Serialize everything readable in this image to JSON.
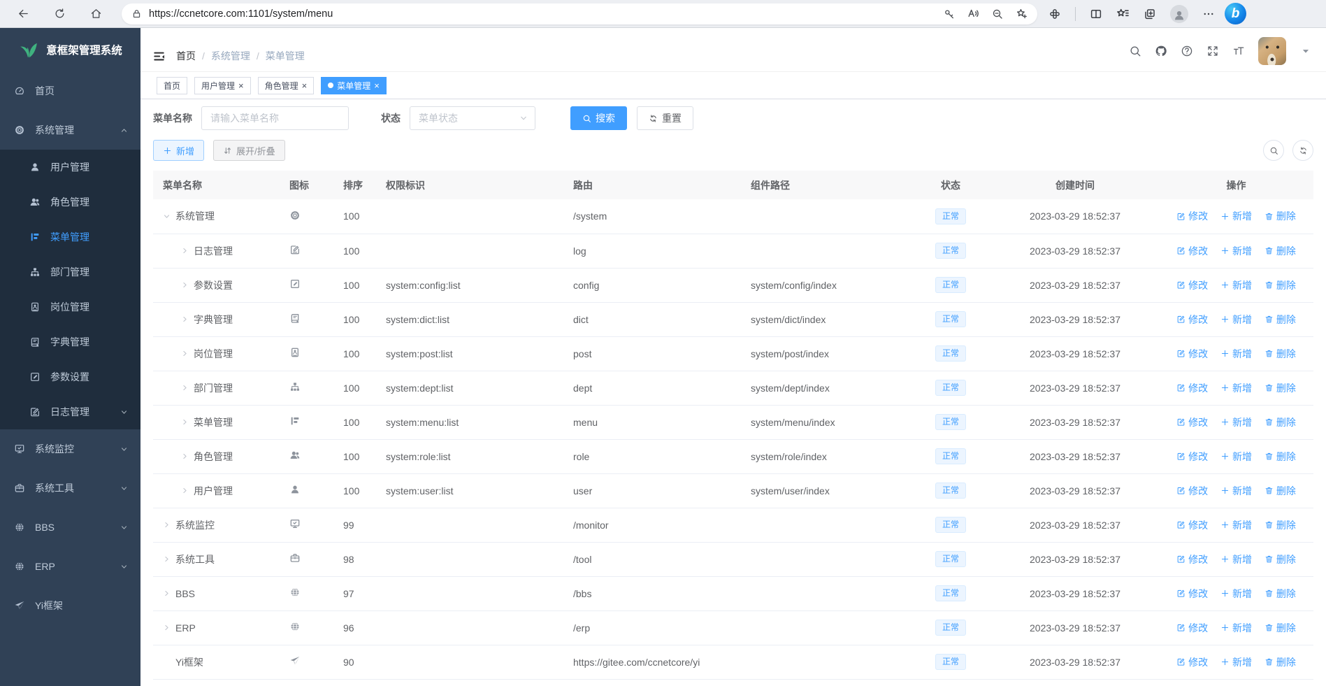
{
  "browser": {
    "url": "https://ccnetcore.com:1101/system/menu"
  },
  "sidebar": {
    "title": "意框架管理系统",
    "items": [
      {
        "label": "首页",
        "icon": "dashboard"
      },
      {
        "label": "系统管理",
        "icon": "gear",
        "expanded": true,
        "children": [
          {
            "label": "用户管理",
            "icon": "user"
          },
          {
            "label": "角色管理",
            "icon": "peoples"
          },
          {
            "label": "菜单管理",
            "icon": "tree-table",
            "active": true
          },
          {
            "label": "部门管理",
            "icon": "tree"
          },
          {
            "label": "岗位管理",
            "icon": "post"
          },
          {
            "label": "字典管理",
            "icon": "dict"
          },
          {
            "label": "参数设置",
            "icon": "edit"
          },
          {
            "label": "日志管理",
            "icon": "log",
            "has_children": true
          }
        ]
      },
      {
        "label": "系统监控",
        "icon": "monitor",
        "has_children": true
      },
      {
        "label": "系统工具",
        "icon": "tool",
        "has_children": true
      },
      {
        "label": "BBS",
        "icon": "globe",
        "has_children": true
      },
      {
        "label": "ERP",
        "icon": "globe",
        "has_children": true
      },
      {
        "label": "Yi框架",
        "icon": "guide"
      }
    ]
  },
  "header": {
    "breadcrumb": [
      "首页",
      "系统管理",
      "菜单管理"
    ]
  },
  "tabs": [
    {
      "label": "首页",
      "closable": false,
      "active": false
    },
    {
      "label": "用户管理",
      "closable": true,
      "active": false
    },
    {
      "label": "角色管理",
      "closable": true,
      "active": false
    },
    {
      "label": "菜单管理",
      "closable": true,
      "active": true
    }
  ],
  "filters": {
    "name_label": "菜单名称",
    "name_placeholder": "请输入菜单名称",
    "name_value": "",
    "status_label": "状态",
    "status_placeholder": "菜单状态",
    "search_button": "搜索",
    "reset_button": "重置"
  },
  "toolbar": {
    "add_button": "新增",
    "toggle_button": "展开/折叠"
  },
  "table": {
    "columns": [
      "菜单名称",
      "图标",
      "排序",
      "权限标识",
      "路由",
      "组件路径",
      "状态",
      "创建时间",
      "操作"
    ],
    "row_actions": {
      "edit": "修改",
      "add": "新增",
      "delete": "删除"
    },
    "rows": [
      {
        "name": "系统管理",
        "icon": "gear",
        "level": "0",
        "expand": "open",
        "order": "100",
        "perms": "",
        "route": "/system",
        "component": "",
        "status": "正常",
        "created": "2023-03-29 18:52:37"
      },
      {
        "name": "日志管理",
        "icon": "log",
        "level": "1",
        "expand": "closed",
        "order": "100",
        "perms": "",
        "route": "log",
        "component": "",
        "status": "正常",
        "created": "2023-03-29 18:52:37"
      },
      {
        "name": "参数设置",
        "icon": "edit",
        "level": "1",
        "expand": "closed",
        "order": "100",
        "perms": "system:config:list",
        "route": "config",
        "component": "system/config/index",
        "status": "正常",
        "created": "2023-03-29 18:52:37"
      },
      {
        "name": "字典管理",
        "icon": "dict",
        "level": "1",
        "expand": "closed",
        "order": "100",
        "perms": "system:dict:list",
        "route": "dict",
        "component": "system/dict/index",
        "status": "正常",
        "created": "2023-03-29 18:52:37"
      },
      {
        "name": "岗位管理",
        "icon": "post",
        "level": "1",
        "expand": "closed",
        "order": "100",
        "perms": "system:post:list",
        "route": "post",
        "component": "system/post/index",
        "status": "正常",
        "created": "2023-03-29 18:52:37"
      },
      {
        "name": "部门管理",
        "icon": "tree",
        "level": "1",
        "expand": "closed",
        "order": "100",
        "perms": "system:dept:list",
        "route": "dept",
        "component": "system/dept/index",
        "status": "正常",
        "created": "2023-03-29 18:52:37"
      },
      {
        "name": "菜单管理",
        "icon": "tree-table",
        "level": "1",
        "expand": "closed",
        "order": "100",
        "perms": "system:menu:list",
        "route": "menu",
        "component": "system/menu/index",
        "status": "正常",
        "created": "2023-03-29 18:52:37"
      },
      {
        "name": "角色管理",
        "icon": "peoples",
        "level": "1",
        "expand": "closed",
        "order": "100",
        "perms": "system:role:list",
        "route": "role",
        "component": "system/role/index",
        "status": "正常",
        "created": "2023-03-29 18:52:37"
      },
      {
        "name": "用户管理",
        "icon": "user",
        "level": "1",
        "expand": "closed",
        "order": "100",
        "perms": "system:user:list",
        "route": "user",
        "component": "system/user/index",
        "status": "正常",
        "created": "2023-03-29 18:52:37"
      },
      {
        "name": "系统监控",
        "icon": "monitor",
        "level": "0",
        "expand": "closed",
        "order": "99",
        "perms": "",
        "route": "/monitor",
        "component": "",
        "status": "正常",
        "created": "2023-03-29 18:52:37"
      },
      {
        "name": "系统工具",
        "icon": "tool",
        "level": "0",
        "expand": "closed",
        "order": "98",
        "perms": "",
        "route": "/tool",
        "component": "",
        "status": "正常",
        "created": "2023-03-29 18:52:37"
      },
      {
        "name": "BBS",
        "icon": "globe",
        "level": "0",
        "expand": "closed",
        "order": "97",
        "perms": "",
        "route": "/bbs",
        "component": "",
        "status": "正常",
        "created": "2023-03-29 18:52:37"
      },
      {
        "name": "ERP",
        "icon": "globe",
        "level": "0",
        "expand": "closed",
        "order": "96",
        "perms": "",
        "route": "/erp",
        "component": "",
        "status": "正常",
        "created": "2023-03-29 18:52:37"
      },
      {
        "name": "Yi框架",
        "icon": "guide",
        "level": "0",
        "expand": "leaf",
        "order": "90",
        "perms": "",
        "route": "https://gitee.com/ccnetcore/yi",
        "component": "",
        "status": "正常",
        "created": "2023-03-29 18:52:37"
      }
    ]
  },
  "colors": {
    "accent": "#409eff",
    "sidebar_bg": "#304156",
    "sidebar_submenu_bg": "#1f2d3d",
    "sidebar_text": "#bfcbd9",
    "logo_green": "#3fb27f",
    "status_tag_bg": "#ecf5ff",
    "status_tag_border": "#d9ecff"
  }
}
